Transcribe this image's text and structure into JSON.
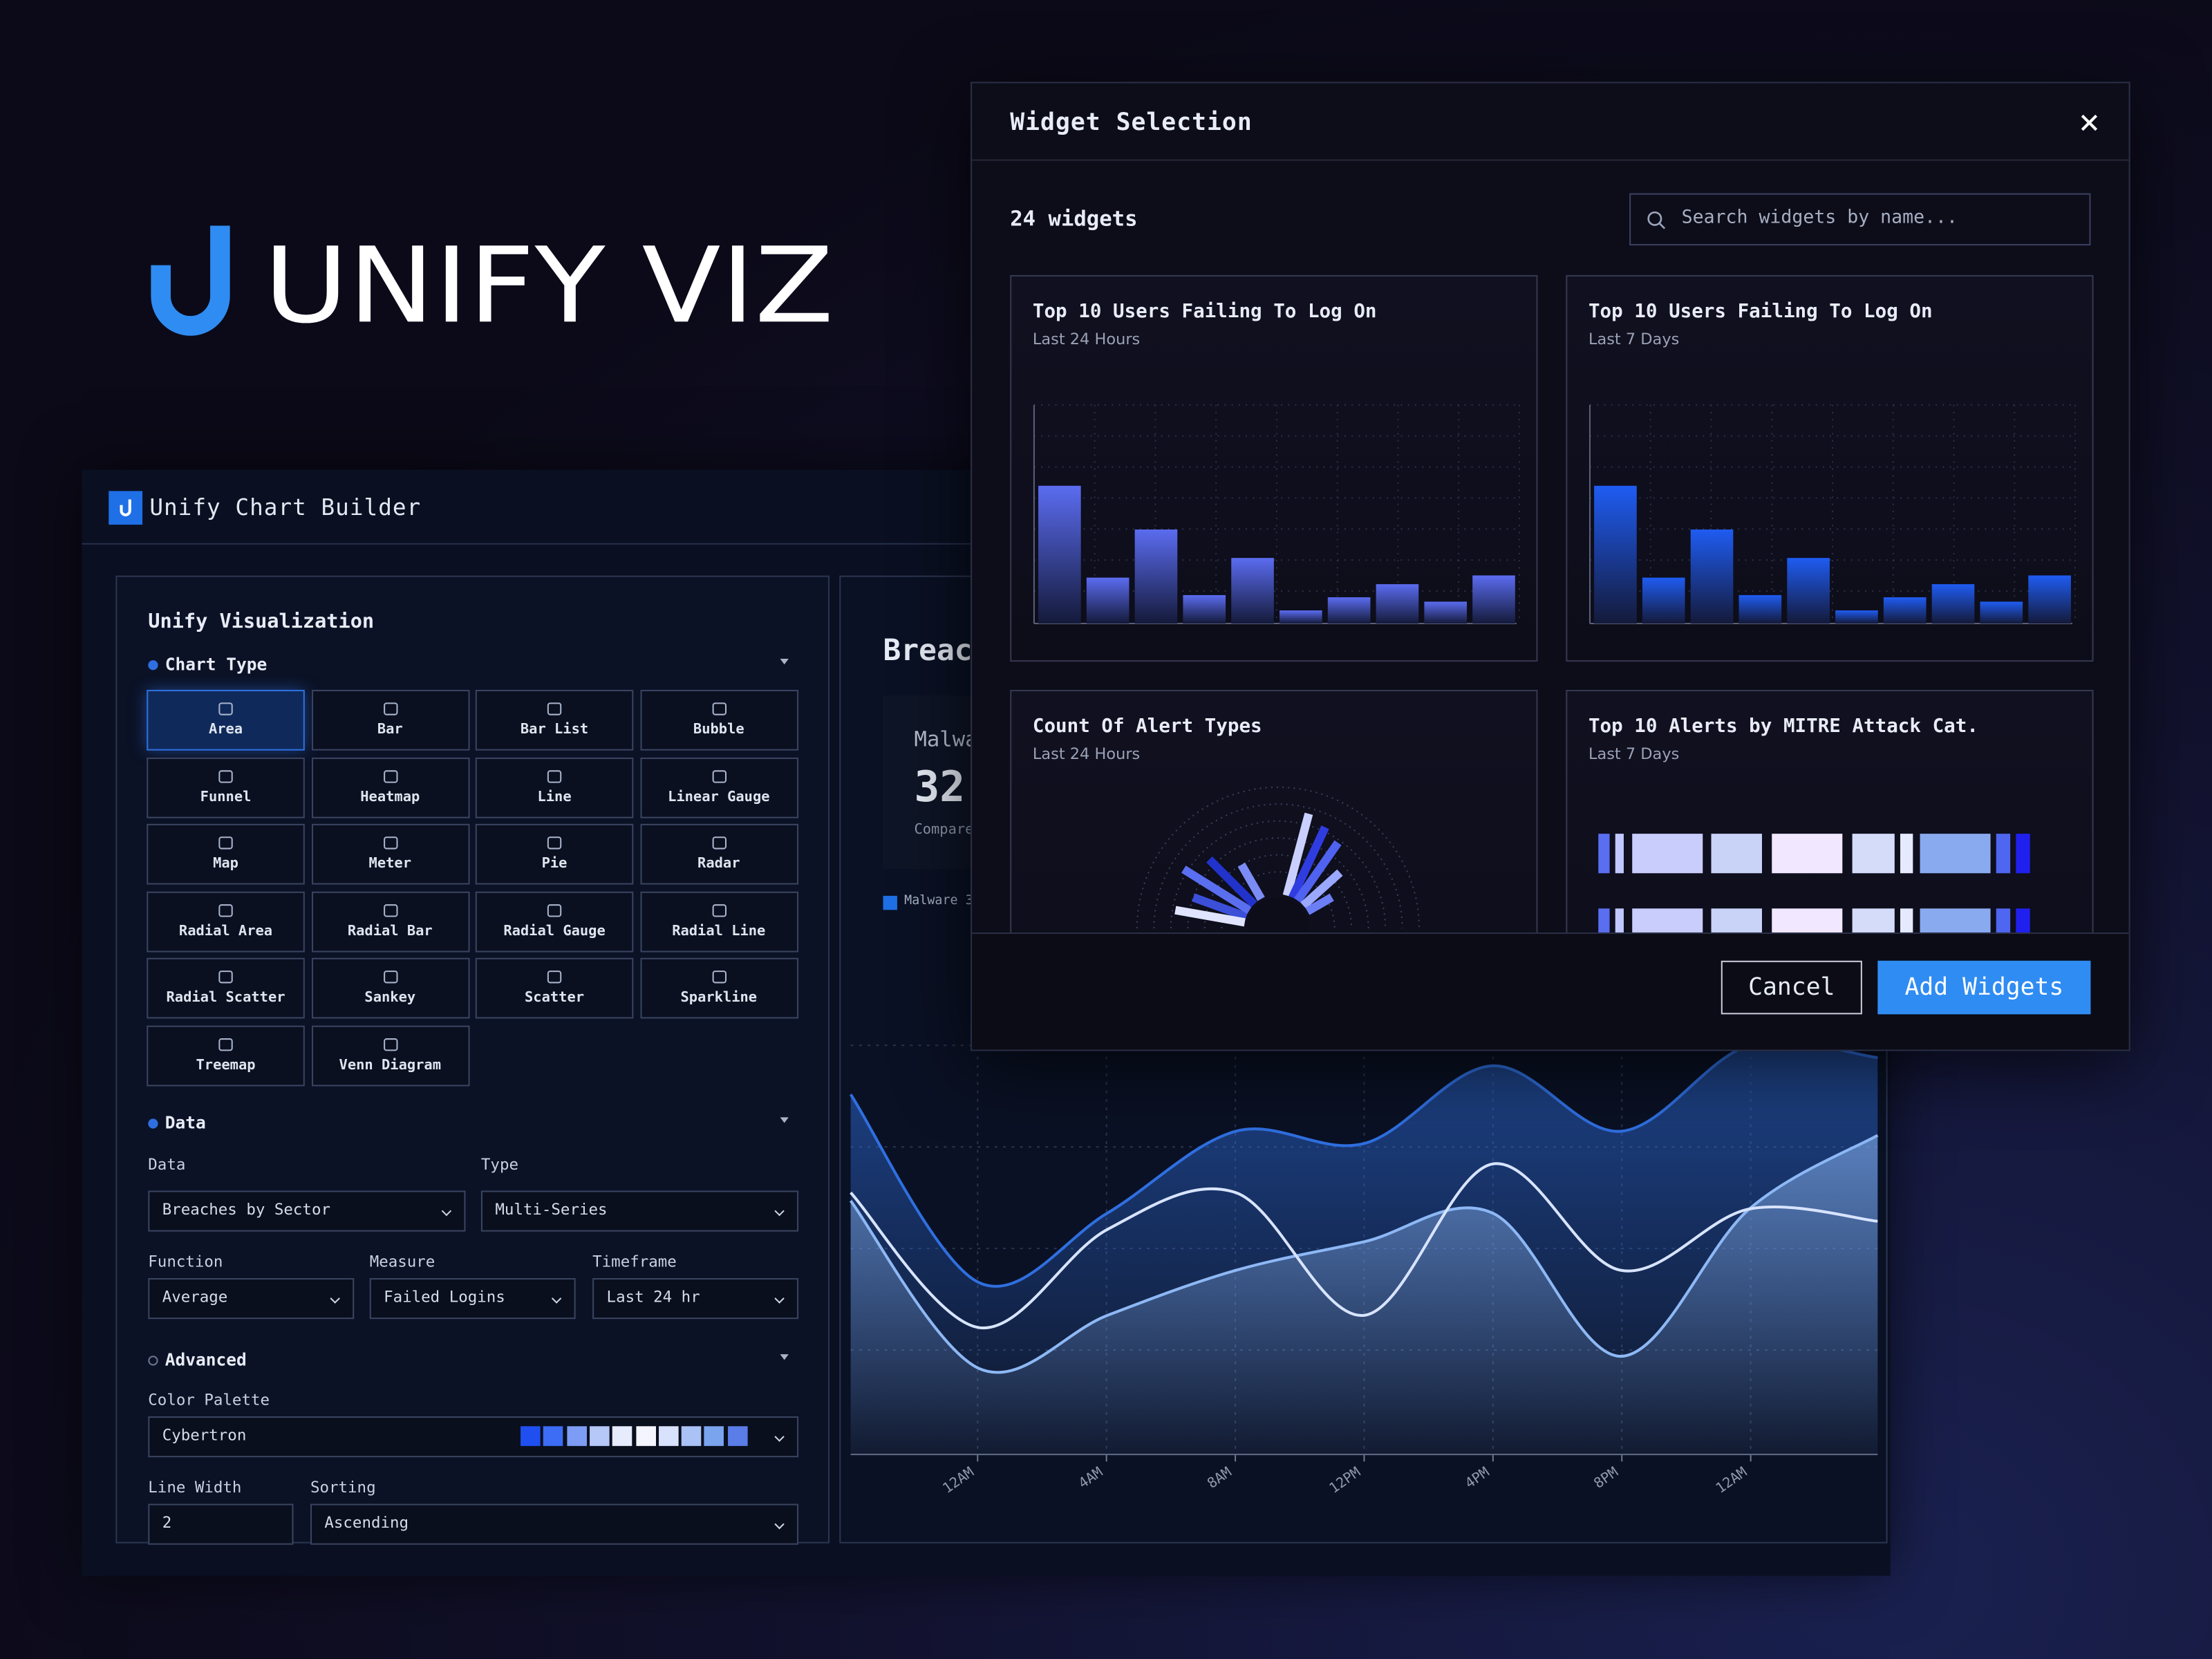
{
  "logo": {
    "text": "UNIFY VIZ"
  },
  "builder": {
    "title": "Unify Chart Builder",
    "panel_title": "Unify Visualization",
    "chart_type": {
      "heading": "Chart Type",
      "selected": 0,
      "options": [
        "Area",
        "Bar",
        "Bar List",
        "Bubble",
        "Funnel",
        "Heatmap",
        "Line",
        "Linear Gauge",
        "Map",
        "Meter",
        "Pie",
        "Radar",
        "Radial Area",
        "Radial Bar",
        "Radial Gauge",
        "Radial Line",
        "Radial Scatter",
        "Sankey",
        "Scatter",
        "Sparkline",
        "Treemap",
        "Venn Diagram"
      ]
    },
    "data_section": {
      "heading": "Data",
      "fields": [
        {
          "label": "Data",
          "value": "Breaches by Sector"
        },
        {
          "label": "Type",
          "value": "Multi-Series"
        },
        {
          "label": "Function",
          "value": "Average"
        },
        {
          "label": "Measure",
          "value": "Failed Logins"
        },
        {
          "label": "Timeframe",
          "value": "Last 24 hr"
        }
      ]
    },
    "advanced": {
      "heading": "Advanced",
      "fields": [
        {
          "label": "Color Palette",
          "value": "Cybertron"
        },
        {
          "label": "Line Width",
          "value": "2"
        },
        {
          "label": "Sorting",
          "value": "Ascending"
        }
      ],
      "palette": [
        "#1f4ff0",
        "#3d6cf5",
        "#7d9cf5",
        "#b5c8f8",
        "#e6ecfc",
        "#f4f5ff",
        "#d8e2fc",
        "#aac2f5",
        "#7aa4ee",
        "#5a7de8"
      ]
    }
  },
  "preview": {
    "title": "Breac",
    "stat_label": "Malwa",
    "stat_value": "32",
    "stat_note": "Compare",
    "legend": "Malware 3",
    "chart": {
      "type": "area",
      "ylim": [
        0,
        100
      ],
      "xticks": [
        "12AM",
        "4AM",
        "8AM",
        "12PM",
        "4PM",
        "8PM",
        "12AM"
      ],
      "series": [
        {
          "color": "#2f6fe0",
          "values": [
            88,
            42,
            59,
            79,
            76,
            95,
            79,
            100,
            97
          ]
        },
        {
          "color": "#d8e4ff",
          "values": [
            64,
            31,
            55,
            64,
            34,
            71,
            45,
            60,
            57
          ]
        },
        {
          "color": "#8db8f5",
          "values": [
            62,
            21,
            34,
            45,
            52,
            59,
            24,
            60,
            78
          ]
        }
      ]
    }
  },
  "modal": {
    "title": "Widget Selection",
    "count": "24 widgets",
    "search_placeholder": "Search widgets by name...",
    "cancel": "Cancel",
    "add": "Add Widgets",
    "widgets": [
      {
        "title": "Top 10 Users Failing To Log On",
        "subtitle": "Last 24 Hours",
        "chart": {
          "type": "bar",
          "color": "#5b6cf0",
          "ylim": [
            0,
            100
          ],
          "values": [
            63,
            21,
            43,
            13,
            30,
            6,
            12,
            18,
            10,
            22
          ]
        }
      },
      {
        "title": "Top 10 Users Failing To Log On",
        "subtitle": "Last 7 Days",
        "chart": {
          "type": "bar",
          "color": "#1f5cf2",
          "ylim": [
            0,
            100
          ],
          "values": [
            63,
            21,
            43,
            13,
            30,
            6,
            12,
            18,
            10,
            22
          ]
        }
      },
      {
        "title": "Count Of Alert Types",
        "subtitle": "Last 24 Hours"
      },
      {
        "title": "Top 10 Alerts by MITRE Attack Cat.",
        "subtitle": "Last 7 Days"
      }
    ]
  }
}
